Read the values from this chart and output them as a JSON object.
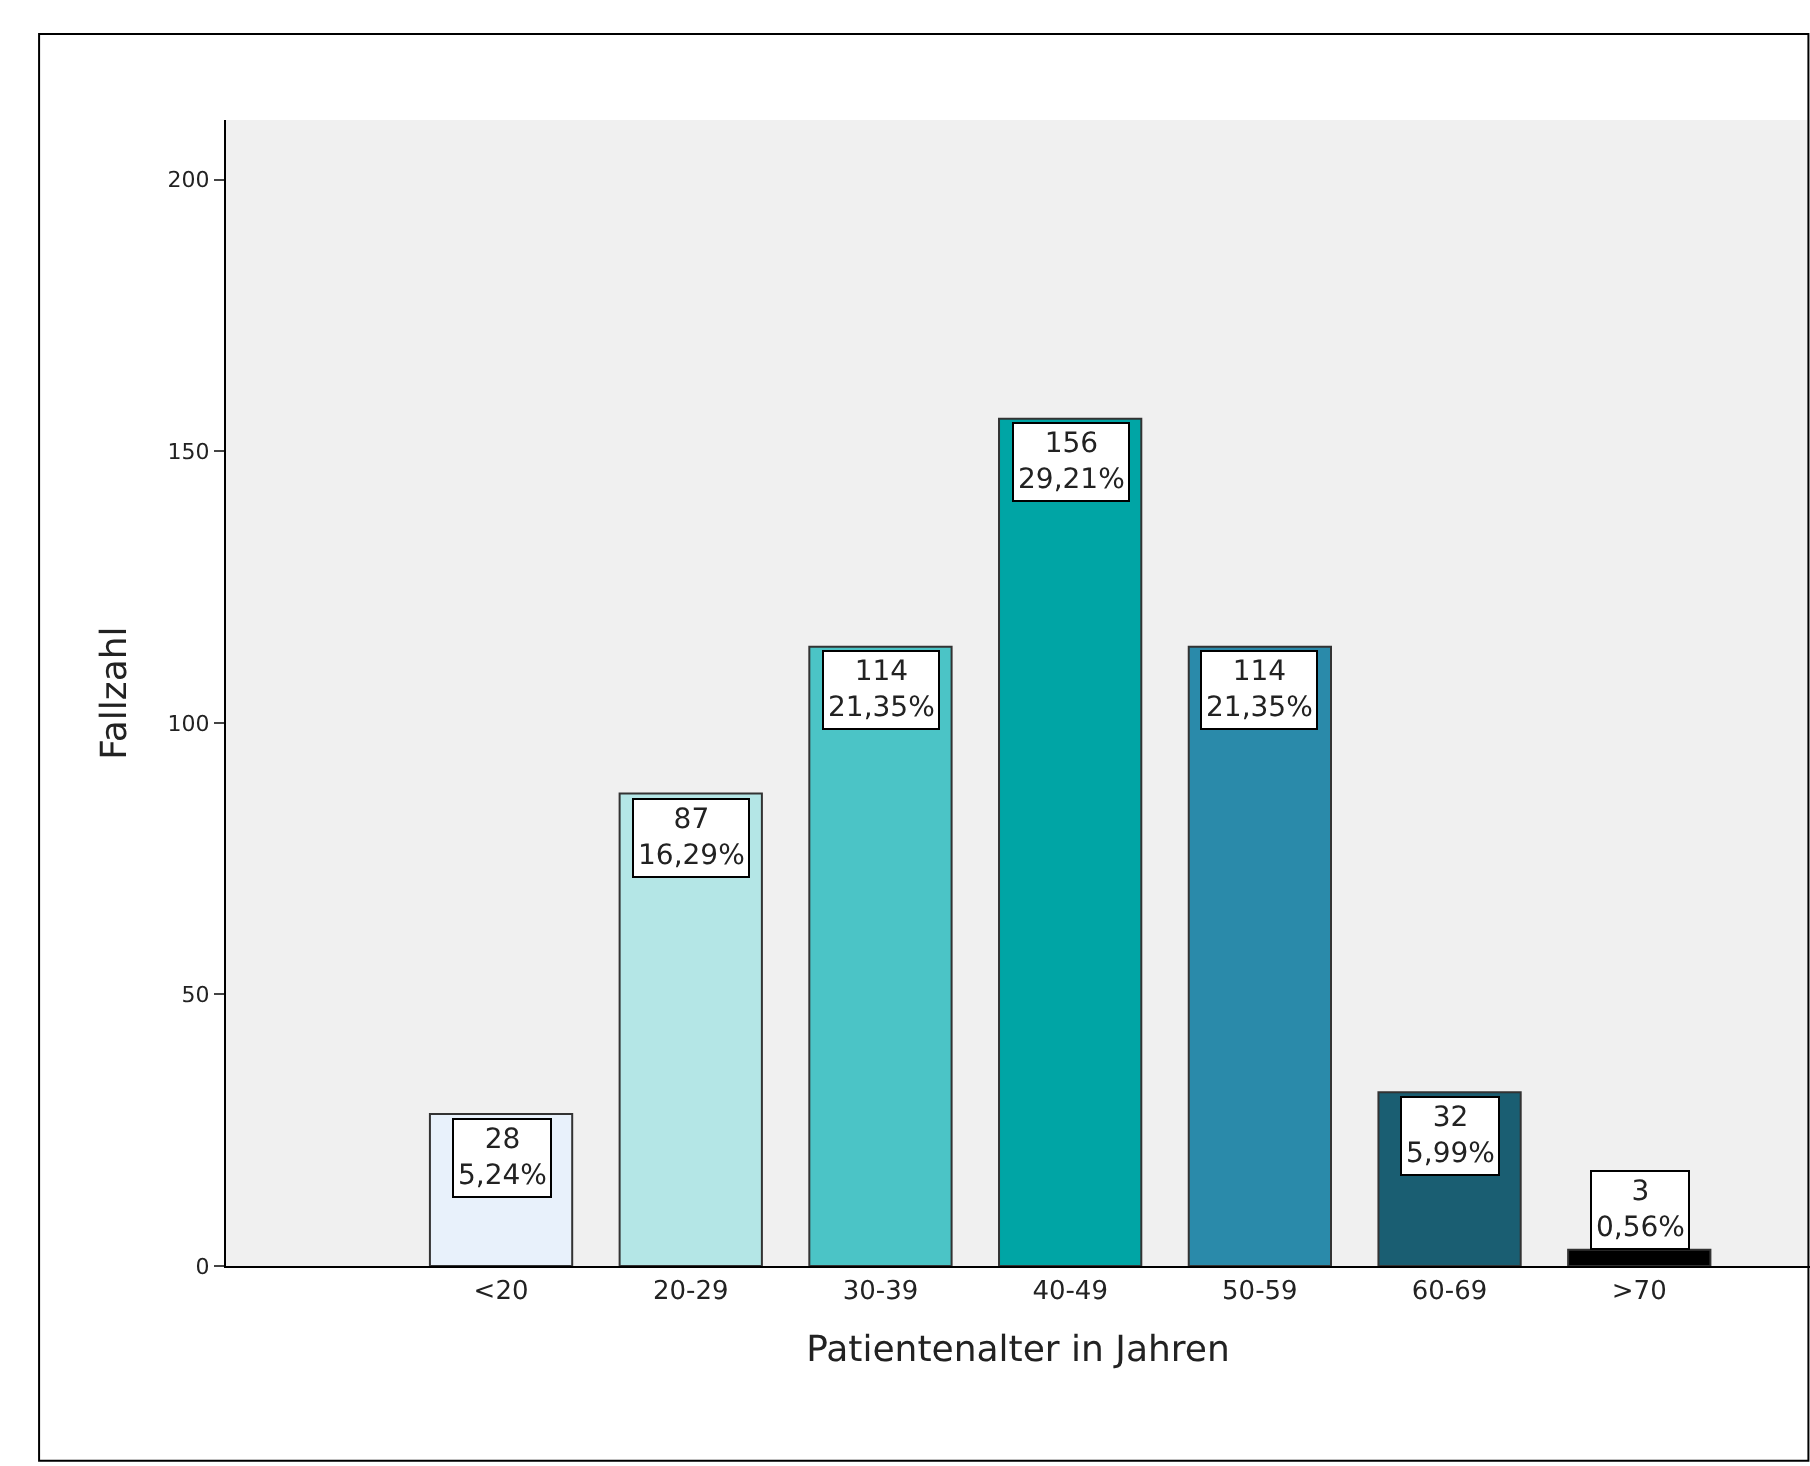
{
  "chart_data": {
    "type": "bar",
    "xlabel": "Patientenalter in Jahren",
    "ylabel": "Fallzahl",
    "categories": [
      "<20",
      "20-29",
      "30-39",
      "40-49",
      "50-59",
      "60-69",
      ">70"
    ],
    "values": [
      28,
      87,
      114,
      156,
      114,
      32,
      3
    ],
    "colors": [
      "#e8f1fb",
      "#b4e6e6",
      "#4bc4c6",
      "#00a5a5",
      "#2a8aaa",
      "#1a5e72",
      "#000000"
    ],
    "value_labels": [
      "28\n5,24%",
      "87\n16,29%",
      "114\n21,35%",
      "156\n29,21%",
      "114\n21,35%",
      "32\n5,99%",
      "3\n0,56%"
    ],
    "ylim": [
      0,
      211
    ],
    "yticks": [
      0,
      50,
      100,
      150,
      200
    ]
  }
}
